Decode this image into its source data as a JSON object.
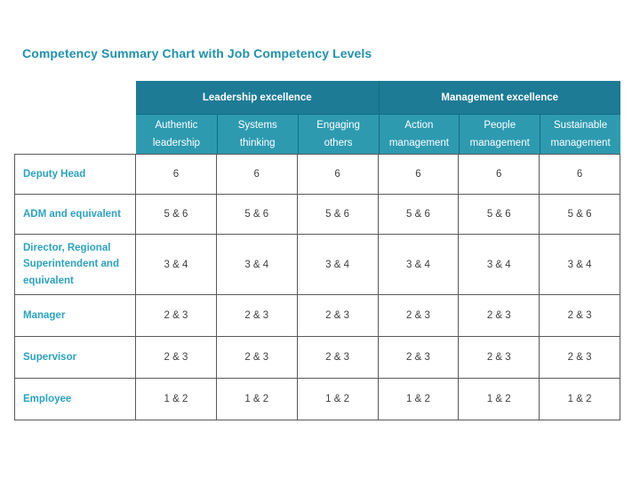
{
  "title": "Competency Summary Chart with Job Competency Levels",
  "table": {
    "column_groups": [
      {
        "label": "Leadership excellence",
        "span": 3
      },
      {
        "label": "Management excellence",
        "span": 3
      }
    ],
    "columns": [
      "Authentic leadership",
      "Systems thinking",
      "Engaging others",
      "Action management",
      "People management",
      "Sustainable management"
    ],
    "rows": [
      {
        "label": "Deputy Head",
        "values": [
          "6",
          "6",
          "6",
          "6",
          "6",
          "6"
        ]
      },
      {
        "label": "ADM and equivalent",
        "values": [
          "5 & 6",
          "5 & 6",
          "5 & 6",
          "5 & 6",
          "5 & 6",
          "5 & 6"
        ]
      },
      {
        "label": "Director, Regional Superintendent and equivalent",
        "values": [
          "3 & 4",
          "3 & 4",
          "3 & 4",
          "3 & 4",
          "3 & 4",
          "3 & 4"
        ]
      },
      {
        "label": "Manager",
        "values": [
          "2 & 3",
          "2 & 3",
          "2 & 3",
          "2 & 3",
          "2 & 3",
          "2 & 3"
        ]
      },
      {
        "label": "Supervisor",
        "values": [
          "2 & 3",
          "2 & 3",
          "2 & 3",
          "2 & 3",
          "2 & 3",
          "2 & 3"
        ]
      },
      {
        "label": "Employee",
        "values": [
          "1 & 2",
          "1 & 2",
          "1 & 2",
          "1 & 2",
          "1 & 2",
          "1 & 2"
        ]
      }
    ]
  },
  "colors": {
    "title_text": "#2191ad",
    "group_header_bg": "#1d7b95",
    "sub_header_bg": "#2d9ab0",
    "header_border": "#136c85",
    "header_text": "#ffffff",
    "row_label_text": "#2ba1c0",
    "body_border": "#595959",
    "cell_text": "#3f3f3f"
  }
}
